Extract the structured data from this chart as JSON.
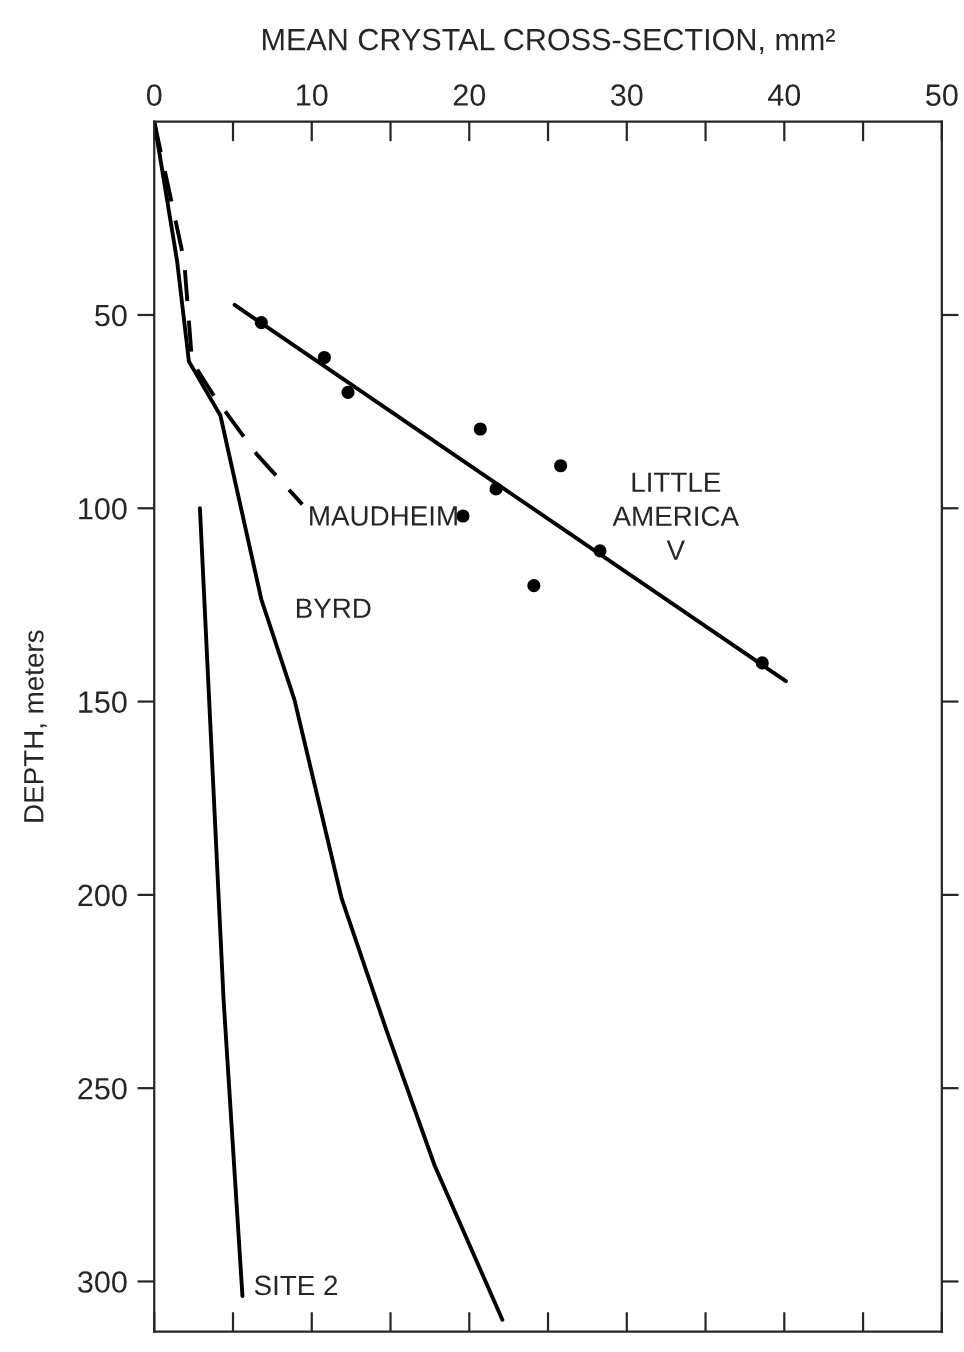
{
  "chart_data": {
    "type": "line",
    "xlabel": "MEAN CRYSTAL CROSS-SECTION, mm²",
    "ylabel": "DEPTH, meters",
    "xlim": [
      0,
      50
    ],
    "ylim": [
      313,
      0
    ],
    "xticks": [
      0,
      {
        "value": 5,
        "label": null
      },
      10,
      {
        "value": 15,
        "label": null
      },
      20,
      {
        "value": 25,
        "label": null
      },
      30,
      {
        "value": 35,
        "label": null
      },
      40,
      {
        "value": 45,
        "label": null
      },
      50
    ],
    "yticks": [
      50,
      100,
      150,
      200,
      250,
      300
    ],
    "grid": false,
    "legend": false,
    "series": [
      {
        "type": "scatter",
        "color": "#000000",
        "marker": "circle",
        "x": [
          6.8,
          10.8,
          12.3,
          20.7,
          21.7,
          19.6,
          25.8,
          28.3,
          24.1,
          38.6
        ],
        "values": [
          52,
          61,
          70,
          79.5,
          95,
          102,
          89,
          111,
          120,
          140
        ]
      },
      {
        "type": "line",
        "name": "LITTLE\nAMERICA\nV",
        "color": "#000000",
        "line_style": "solid",
        "x": [
          5.1,
          40.1
        ],
        "values": [
          47.4,
          144.7
        ]
      },
      {
        "type": "line",
        "name": "MAUDHEIM",
        "color": "#000000",
        "line_style": "dashed",
        "x": [
          0,
          1.9,
          2.4,
          3.8,
          6.5,
          9.4
        ],
        "values": [
          0,
          36,
          62,
          71,
          86,
          99
        ]
      },
      {
        "type": "line",
        "name": "BYRD",
        "color": "#000000",
        "line_style": "solid",
        "x": [
          0,
          1.45,
          2.2,
          4.2,
          6.8,
          8.9,
          11.9,
          14.8,
          17.8,
          22.1
        ],
        "values": [
          0,
          36,
          62,
          76,
          123.6,
          149.5,
          201,
          235.7,
          270,
          309.9
        ]
      },
      {
        "type": "line",
        "name": "SITE 2",
        "color": "#000000",
        "line_style": "solid",
        "x": [
          2.9,
          4.4,
          5.6
        ],
        "values": [
          100,
          227,
          303.8
        ]
      }
    ]
  }
}
